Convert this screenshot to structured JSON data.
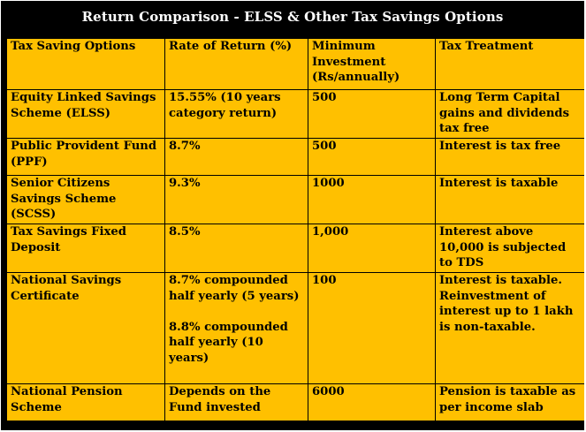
{
  "title": "Return Comparison - ELSS & Other Tax Savings Options",
  "columns": [
    "Tax Saving Options",
    "Rate of Return (%)",
    "Minimum Investment (Rs/annually)",
    "Tax Treatment"
  ],
  "rows": [
    {
      "option": "Equity Linked Savings Scheme (ELSS)",
      "rate": "15.55% (10 years category return)",
      "min": "500",
      "tax": "Long Term Capital gains and dividends tax free"
    },
    {
      "option": "Public Provident Fund (PPF)",
      "rate": "8.7%",
      "min": "500",
      "tax": "Interest is tax free"
    },
    {
      "option": "Senior Citizens Savings Scheme (SCSS)",
      "rate": "9.3%",
      "min": "1000",
      "tax": "Interest is taxable"
    },
    {
      "option": "Tax Savings Fixed Deposit",
      "rate": "8.5%",
      "min": "1,000",
      "tax": "Interest above 10,000 is subjected to TDS"
    },
    {
      "option": "National Savings Certificate",
      "rate": "8.7% compounded half yearly (5 years)",
      "rate2": "8.8% compounded half yearly (10 years)",
      "min": "100",
      "tax": "Interest is taxable. Reinvestment of interest up to 1 lakh is non-taxable."
    },
    {
      "option": "National Pension Scheme",
      "rate": "Depends on the Fund invested",
      "min": "6000",
      "tax": "Pension is taxable as per income slab"
    }
  ],
  "colors": {
    "frame": "#000000",
    "cell": "#FFC000",
    "title_text": "#FFFFFF"
  }
}
